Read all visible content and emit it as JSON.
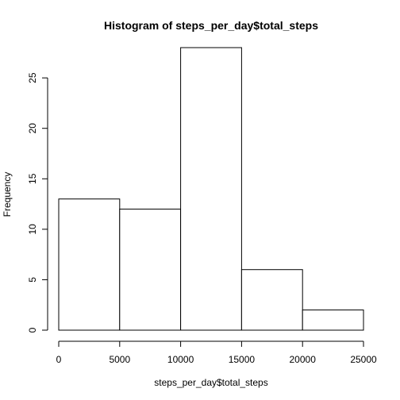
{
  "chart_data": {
    "type": "bar",
    "subtype": "histogram",
    "title": "Histogram of steps_per_day$total_steps",
    "xlabel": "steps_per_day$total_steps",
    "ylabel": "Frequency",
    "bins": [
      {
        "x0": 0,
        "x1": 5000,
        "count": 13
      },
      {
        "x0": 5000,
        "x1": 10000,
        "count": 12
      },
      {
        "x0": 10000,
        "x1": 15000,
        "count": 28
      },
      {
        "x0": 15000,
        "x1": 20000,
        "count": 6
      },
      {
        "x0": 20000,
        "x1": 25000,
        "count": 2
      }
    ],
    "xlim": [
      0,
      25000
    ],
    "ylim": [
      0,
      28
    ],
    "x_ticks": [
      0,
      5000,
      10000,
      15000,
      20000,
      25000
    ],
    "y_ticks": [
      0,
      5,
      10,
      15,
      20,
      25
    ],
    "grid": false,
    "legend": "none",
    "colors": {
      "bar_fill": "#ffffff",
      "bar_stroke": "#000000",
      "text": "#000000"
    }
  }
}
